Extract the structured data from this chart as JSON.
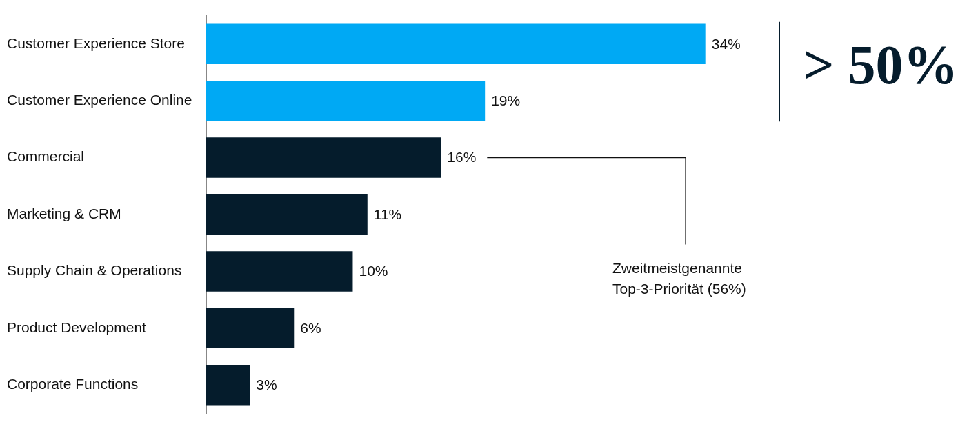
{
  "chart_data": {
    "type": "bar",
    "orientation": "horizontal",
    "categories": [
      "Customer Experience Store",
      "Customer Experience Online",
      "Commercial",
      "Marketing & CRM",
      "Supply Chain & Operations",
      "Product Development",
      "Corporate Functions"
    ],
    "values": [
      34,
      19,
      16,
      11,
      10,
      6,
      3
    ],
    "colors": [
      "#00a9f4",
      "#00a9f4",
      "#051c2c",
      "#051c2c",
      "#051c2c",
      "#051c2c",
      "#051c2c"
    ],
    "value_labels": [
      "34%",
      "19%",
      "16%",
      "11%",
      "10%",
      "6%",
      "3%"
    ],
    "tick_labels": "y",
    "grid": false,
    "legend": false,
    "annotations": [
      "> 50%",
      "Zweitmeistgenannte\nTop-3-Priorität (56%)"
    ]
  }
}
